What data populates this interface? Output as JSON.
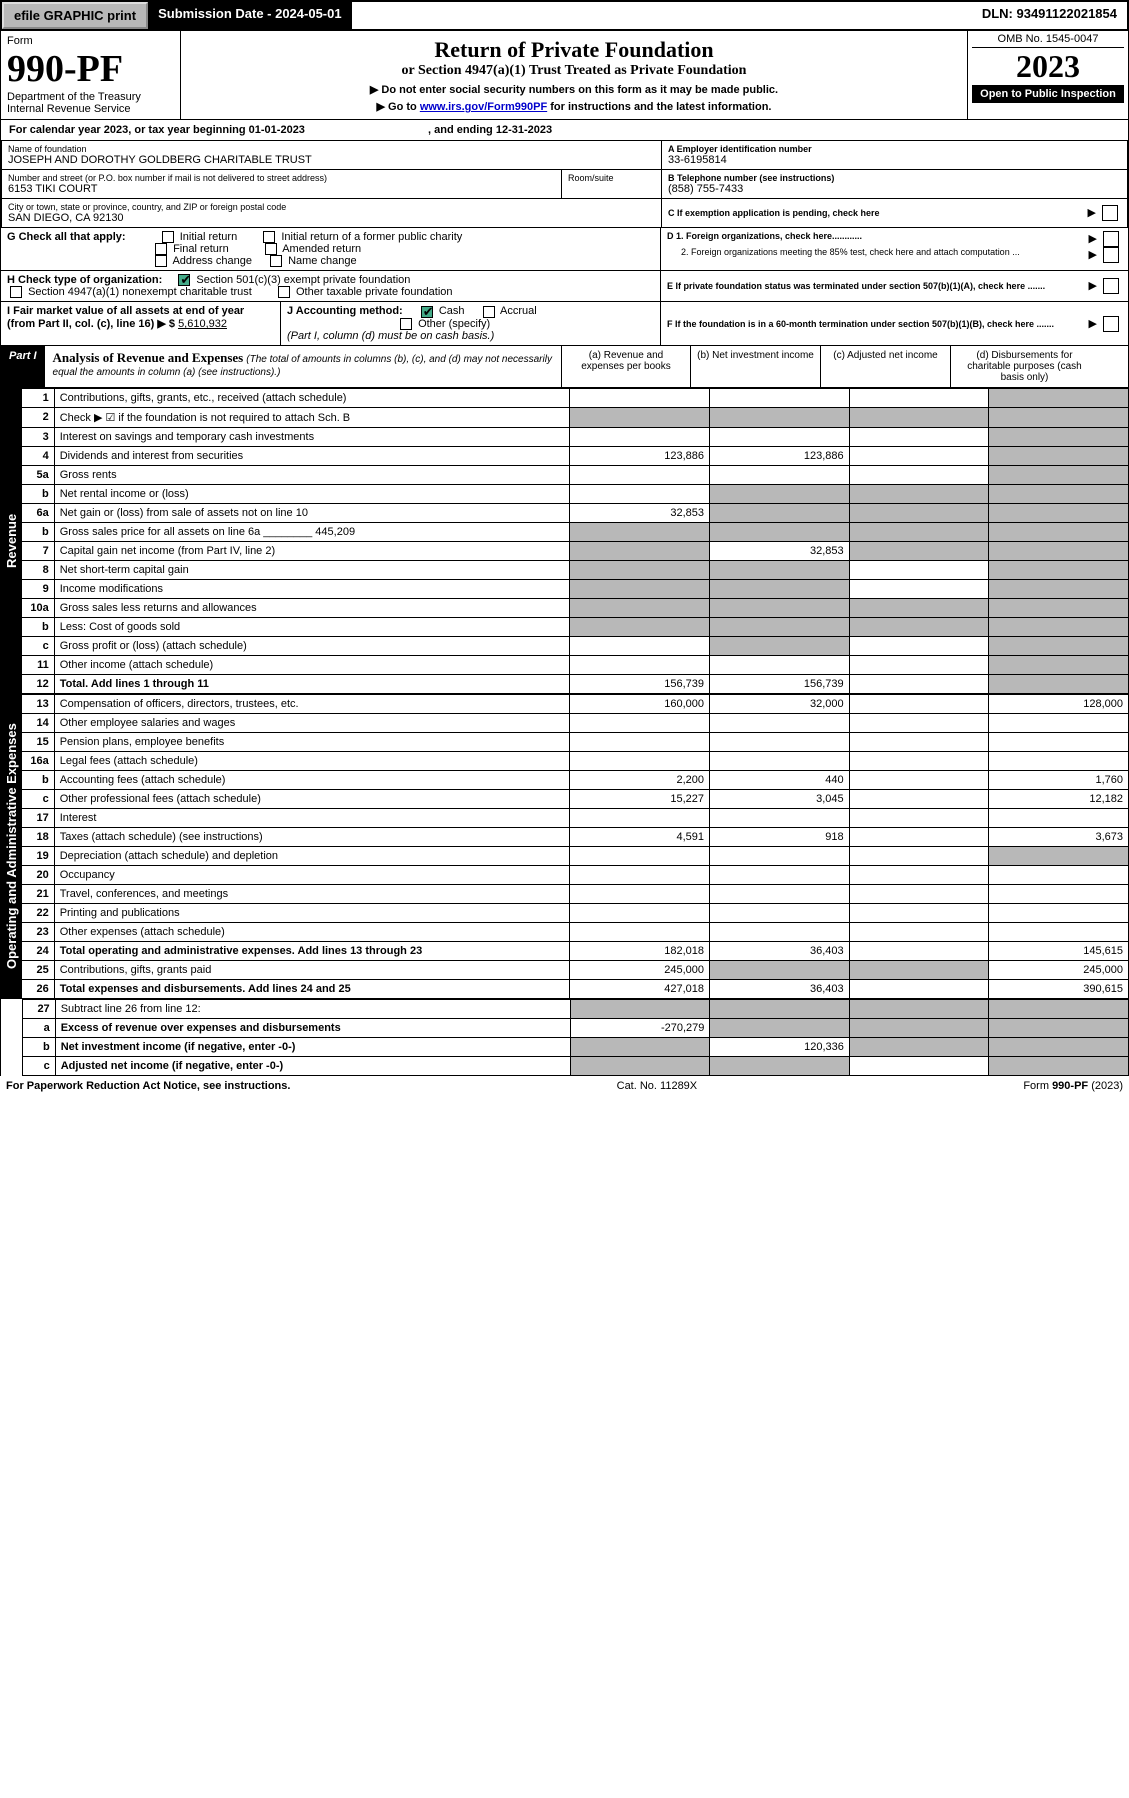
{
  "topbar": {
    "efile_btn": "efile GRAPHIC print",
    "subdate": "Submission Date - 2024-05-01",
    "dln": "DLN: 93491122021854"
  },
  "header": {
    "form_label": "Form",
    "form_no": "990-PF",
    "dept1": "Department of the Treasury",
    "dept2": "Internal Revenue Service",
    "title": "Return of Private Foundation",
    "subtitle": "or Section 4947(a)(1) Trust Treated as Private Foundation",
    "instr1": "▶ Do not enter social security numbers on this form as it may be made public.",
    "instr2_pre": "▶ Go to ",
    "instr2_link": "www.irs.gov/Form990PF",
    "instr2_post": " for instructions and the latest information.",
    "omb": "OMB No. 1545-0047",
    "year": "2023",
    "open": "Open to Public Inspection"
  },
  "calyear": {
    "text_pre": "For calendar year 2023, or tax year beginning ",
    "begin": "01-01-2023",
    "text_mid": " , and ending ",
    "end": "12-31-2023"
  },
  "entity": {
    "name_label": "Name of foundation",
    "name": "JOSEPH AND DOROTHY GOLDBERG CHARITABLE TRUST",
    "addr_label": "Number and street (or P.O. box number if mail is not delivered to street address)",
    "addr": "6153 TIKI COURT",
    "room_label": "Room/suite",
    "city_label": "City or town, state or province, country, and ZIP or foreign postal code",
    "city": "SAN DIEGO, CA  92130",
    "ein_label": "A Employer identification number",
    "ein": "33-6195814",
    "phone_label": "B Telephone number (see instructions)",
    "phone": "(858) 755-7433",
    "c_label": "C If exemption application is pending, check here"
  },
  "checks": {
    "g_label": "G Check all that apply:",
    "g_opts": [
      "Initial return",
      "Initial return of a former public charity",
      "Final return",
      "Amended return",
      "Address change",
      "Name change"
    ],
    "h_label": "H Check type of organization:",
    "h1": "Section 501(c)(3) exempt private foundation",
    "h2": "Section 4947(a)(1) nonexempt charitable trust",
    "h3": "Other taxable private foundation",
    "i_label": "I Fair market value of all assets at end of year (from Part II, col. (c), line 16) ▶ $",
    "i_val": "5,610,932",
    "j_label": "J Accounting method:",
    "j_cash": "Cash",
    "j_accrual": "Accrual",
    "j_other": "Other (specify)",
    "j_note": "(Part I, column (d) must be on cash basis.)",
    "d1": "D 1. Foreign organizations, check here............",
    "d2": "2. Foreign organizations meeting the 85% test, check here and attach computation ...",
    "e": "E  If private foundation status was terminated under section 507(b)(1)(A), check here .......",
    "f": "F  If the foundation is in a 60-month termination under section 507(b)(1)(B), check here ......."
  },
  "part1": {
    "label": "Part I",
    "title": "Analysis of Revenue and Expenses",
    "note": "(The total of amounts in columns (b), (c), and (d) may not necessarily equal the amounts in column (a) (see instructions).)",
    "cols": {
      "a": "(a) Revenue and expenses per books",
      "b": "(b) Net investment income",
      "c": "(c) Adjusted net income",
      "d": "(d) Disbursements for charitable purposes (cash basis only)"
    }
  },
  "sections": {
    "revenue": "Revenue",
    "opex": "Operating and Administrative Expenses"
  },
  "lines": [
    {
      "no": "1",
      "desc": "Contributions, gifts, grants, etc., received (attach schedule)",
      "a": "",
      "b": "",
      "c": "",
      "d": "",
      "dgrey": true
    },
    {
      "no": "2",
      "desc": "Check ▶ ☑ if the foundation is not required to attach Sch. B",
      "a": "",
      "b": "",
      "c": "",
      "d": "",
      "allgrey": true,
      "bold_not": true
    },
    {
      "no": "3",
      "desc": "Interest on savings and temporary cash investments",
      "a": "",
      "b": "",
      "c": "",
      "d": "",
      "dgrey": true
    },
    {
      "no": "4",
      "desc": "Dividends and interest from securities",
      "a": "123,886",
      "b": "123,886",
      "c": "",
      "d": "",
      "dgrey": true
    },
    {
      "no": "5a",
      "desc": "Gross rents",
      "a": "",
      "b": "",
      "c": "",
      "d": "",
      "dgrey": true
    },
    {
      "no": "b",
      "desc": "Net rental income or (loss)",
      "a": "",
      "b": "",
      "c": "",
      "d": "",
      "inset": true,
      "bcdgrey": true
    },
    {
      "no": "6a",
      "desc": "Net gain or (loss) from sale of assets not on line 10",
      "a": "32,853",
      "b": "",
      "c": "",
      "d": "",
      "bcdgrey": true
    },
    {
      "no": "b",
      "desc": "Gross sales price for all assets on line 6a ________ 445,209",
      "a": "",
      "b": "",
      "c": "",
      "d": "",
      "inset": true,
      "allgrey": true
    },
    {
      "no": "7",
      "desc": "Capital gain net income (from Part IV, line 2)",
      "a": "",
      "b": "32,853",
      "c": "",
      "d": "",
      "agrey": true,
      "cdgrey": true
    },
    {
      "no": "8",
      "desc": "Net short-term capital gain",
      "a": "",
      "b": "",
      "c": "",
      "d": "",
      "abgrey": true,
      "dgrey": true
    },
    {
      "no": "9",
      "desc": "Income modifications",
      "a": "",
      "b": "",
      "c": "",
      "d": "",
      "abgrey": true,
      "dgrey": true
    },
    {
      "no": "10a",
      "desc": "Gross sales less returns and allowances",
      "a": "",
      "b": "",
      "c": "",
      "d": "",
      "inset": true,
      "allgrey": true
    },
    {
      "no": "b",
      "desc": "Less: Cost of goods sold",
      "a": "",
      "b": "",
      "c": "",
      "d": "",
      "inset": true,
      "allgrey": true
    },
    {
      "no": "c",
      "desc": "Gross profit or (loss) (attach schedule)",
      "a": "",
      "b": "",
      "c": "",
      "d": "",
      "bgrey": true,
      "dgrey": true
    },
    {
      "no": "11",
      "desc": "Other income (attach schedule)",
      "a": "",
      "b": "",
      "c": "",
      "d": "",
      "dgrey": true
    },
    {
      "no": "12",
      "desc": "Total. Add lines 1 through 11",
      "a": "156,739",
      "b": "156,739",
      "c": "",
      "d": "",
      "bold": true,
      "dgrey": true
    }
  ],
  "opex_lines": [
    {
      "no": "13",
      "desc": "Compensation of officers, directors, trustees, etc.",
      "a": "160,000",
      "b": "32,000",
      "c": "",
      "d": "128,000"
    },
    {
      "no": "14",
      "desc": "Other employee salaries and wages",
      "a": "",
      "b": "",
      "c": "",
      "d": ""
    },
    {
      "no": "15",
      "desc": "Pension plans, employee benefits",
      "a": "",
      "b": "",
      "c": "",
      "d": ""
    },
    {
      "no": "16a",
      "desc": "Legal fees (attach schedule)",
      "a": "",
      "b": "",
      "c": "",
      "d": ""
    },
    {
      "no": "b",
      "desc": "Accounting fees (attach schedule)",
      "a": "2,200",
      "b": "440",
      "c": "",
      "d": "1,760"
    },
    {
      "no": "c",
      "desc": "Other professional fees (attach schedule)",
      "a": "15,227",
      "b": "3,045",
      "c": "",
      "d": "12,182"
    },
    {
      "no": "17",
      "desc": "Interest",
      "a": "",
      "b": "",
      "c": "",
      "d": ""
    },
    {
      "no": "18",
      "desc": "Taxes (attach schedule) (see instructions)",
      "a": "4,591",
      "b": "918",
      "c": "",
      "d": "3,673"
    },
    {
      "no": "19",
      "desc": "Depreciation (attach schedule) and depletion",
      "a": "",
      "b": "",
      "c": "",
      "d": "",
      "dgrey": true
    },
    {
      "no": "20",
      "desc": "Occupancy",
      "a": "",
      "b": "",
      "c": "",
      "d": ""
    },
    {
      "no": "21",
      "desc": "Travel, conferences, and meetings",
      "a": "",
      "b": "",
      "c": "",
      "d": ""
    },
    {
      "no": "22",
      "desc": "Printing and publications",
      "a": "",
      "b": "",
      "c": "",
      "d": ""
    },
    {
      "no": "23",
      "desc": "Other expenses (attach schedule)",
      "a": "",
      "b": "",
      "c": "",
      "d": ""
    },
    {
      "no": "24",
      "desc": "Total operating and administrative expenses. Add lines 13 through 23",
      "a": "182,018",
      "b": "36,403",
      "c": "",
      "d": "145,615",
      "bold": true
    },
    {
      "no": "25",
      "desc": "Contributions, gifts, grants paid",
      "a": "245,000",
      "b": "",
      "c": "",
      "d": "245,000",
      "bgrey": true,
      "cgrey": true
    },
    {
      "no": "26",
      "desc": "Total expenses and disbursements. Add lines 24 and 25",
      "a": "427,018",
      "b": "36,403",
      "c": "",
      "d": "390,615",
      "bold": true
    }
  ],
  "bottom_lines": [
    {
      "no": "27",
      "desc": "Subtract line 26 from line 12:",
      "a": "",
      "b": "",
      "c": "",
      "d": "",
      "allgrey": true
    },
    {
      "no": "a",
      "desc": "Excess of revenue over expenses and disbursements",
      "a": "-270,279",
      "b": "",
      "c": "",
      "d": "",
      "bold": true,
      "bcdgrey": true
    },
    {
      "no": "b",
      "desc": "Net investment income (if negative, enter -0-)",
      "a": "",
      "b": "120,336",
      "c": "",
      "d": "",
      "bold": true,
      "agrey": true,
      "cdgrey": true
    },
    {
      "no": "c",
      "desc": "Adjusted net income (if negative, enter -0-)",
      "a": "",
      "b": "",
      "c": "",
      "d": "",
      "bold": true,
      "abgrey": true,
      "dgrey": true
    }
  ],
  "footer": {
    "left": "For Paperwork Reduction Act Notice, see instructions.",
    "mid": "Cat. No. 11289X",
    "right": "Form 990-PF (2023)"
  }
}
